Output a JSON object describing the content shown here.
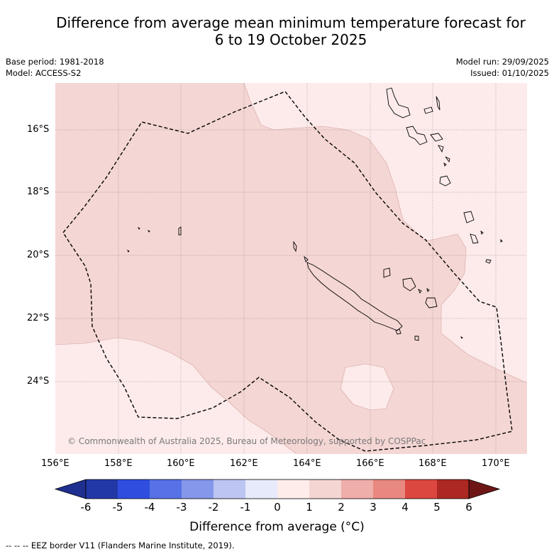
{
  "title": {
    "line1": "Difference from average mean minimum temperature forecast for",
    "line2": "6 to 19 October 2025"
  },
  "meta": {
    "base_period": "Base period: 1981-2018",
    "model": "Model: ACCESS-S2",
    "model_run": "Model run: 29/09/2025",
    "issued": "Issued: 01/10/2025"
  },
  "map": {
    "attribution": "© Commonwealth of Australia 2025, Bureau of Meteorology, supported by COSPPac",
    "lat_labels": [
      "16°S",
      "18°S",
      "20°S",
      "22°S",
      "24°S"
    ],
    "lon_labels": [
      "156°E",
      "158°E",
      "160°E",
      "162°E",
      "164°E",
      "166°E",
      "168°E",
      "170°E"
    ],
    "colors": {
      "anomaly_0_to_1": "#fcebea",
      "anomaly_1_to_2": "#f4d6d4",
      "coast": "#000000",
      "eez_border": "#000000"
    }
  },
  "colorbar": {
    "ticks": [
      "-6",
      "-5",
      "-4",
      "-3",
      "-2",
      "-1",
      "0",
      "1",
      "2",
      "3",
      "4",
      "5",
      "6"
    ],
    "colors": [
      "#1f2f8f",
      "#2238a6",
      "#2f4ee0",
      "#5772e6",
      "#8497ea",
      "#bdc5f3",
      "#e7eafb",
      "#fdecea",
      "#f4d5d2",
      "#efaeaa",
      "#e88880",
      "#dc473f",
      "#ad2823",
      "#6e1616"
    ],
    "label": "Difference from average (°C)"
  },
  "footnote": "--  --  -- EEZ border V11 (Flanders Marine Institute, 2019)."
}
